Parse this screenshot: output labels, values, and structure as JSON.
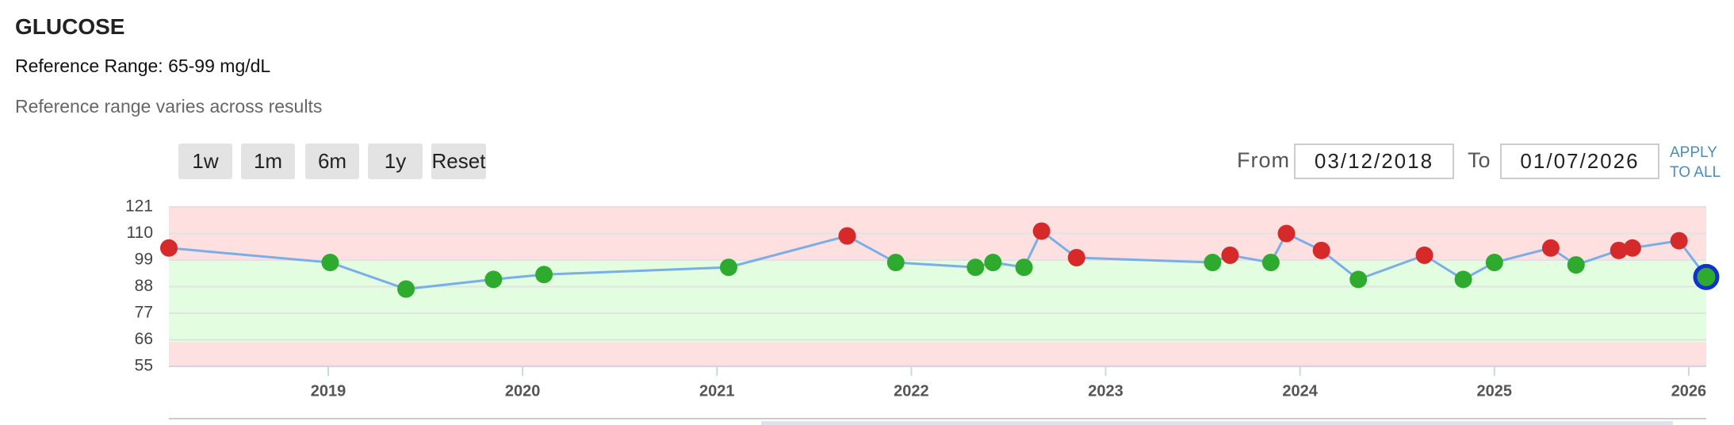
{
  "title": "GLUCOSE",
  "reference_range": "Reference Range: 65-99 mg/dL",
  "note": "Reference range varies across results",
  "buttons": [
    "1w",
    "1m",
    "6m",
    "1y",
    "Reset"
  ],
  "date_filter": {
    "from_label": "From",
    "from": "03/12/2018",
    "to_label": "To",
    "to": "01/07/2026",
    "apply": [
      "APPLY",
      "TO ALL"
    ]
  },
  "chart_data": {
    "type": "line",
    "x": [
      2018.18,
      2019.01,
      2019.4,
      2019.85,
      2020.11,
      2021.06,
      2021.67,
      2021.92,
      2022.33,
      2022.42,
      2022.58,
      2022.67,
      2022.85,
      2023.55,
      2023.64,
      2023.85,
      2023.93,
      2024.11,
      2024.3,
      2024.64,
      2024.84,
      2025.0,
      2025.29,
      2025.42,
      2025.64,
      2025.71,
      2025.95,
      2026.09
    ],
    "series": [
      {
        "color": "#7aaee8",
        "values": [
          104,
          98,
          87,
          91,
          93,
          96,
          109,
          98,
          96,
          98,
          96,
          111,
          100,
          98,
          101,
          98,
          110,
          103,
          91,
          101,
          91,
          98,
          104,
          97,
          103,
          104,
          107,
          92
        ],
        "point_colors": [
          "#d62a2a",
          "#2eaa2e",
          "#2eaa2e",
          "#2eaa2e",
          "#2eaa2e",
          "#2eaa2e",
          "#d62a2a",
          "#2eaa2e",
          "#2eaa2e",
          "#2eaa2e",
          "#2eaa2e",
          "#d62a2a",
          "#d62a2a",
          "#2eaa2e",
          "#d62a2a",
          "#2eaa2e",
          "#d62a2a",
          "#d62a2a",
          "#2eaa2e",
          "#d62a2a",
          "#2eaa2e",
          "#2eaa2e",
          "#d62a2a",
          "#2eaa2e",
          "#d62a2a",
          "#d62a2a",
          "#d62a2a",
          "#2eaa2e"
        ],
        "selected_index": 27,
        "selected_color": "#1030d0"
      }
    ],
    "xlim": [
      2018.18,
      2026.09
    ],
    "xticks": [
      2019,
      2020,
      2021,
      2022,
      2023,
      2024,
      2025,
      2026
    ],
    "ylim": [
      55,
      121
    ],
    "yticks": [
      55,
      66,
      77,
      88,
      99,
      110,
      121
    ],
    "grid": true,
    "bands": [
      {
        "from": 55,
        "to": 65,
        "color": "#ffe0e0"
      },
      {
        "from": 65,
        "to": 99,
        "color": "#e3fde0"
      },
      {
        "from": 99,
        "to": 121,
        "color": "#ffe0e0"
      }
    ]
  }
}
